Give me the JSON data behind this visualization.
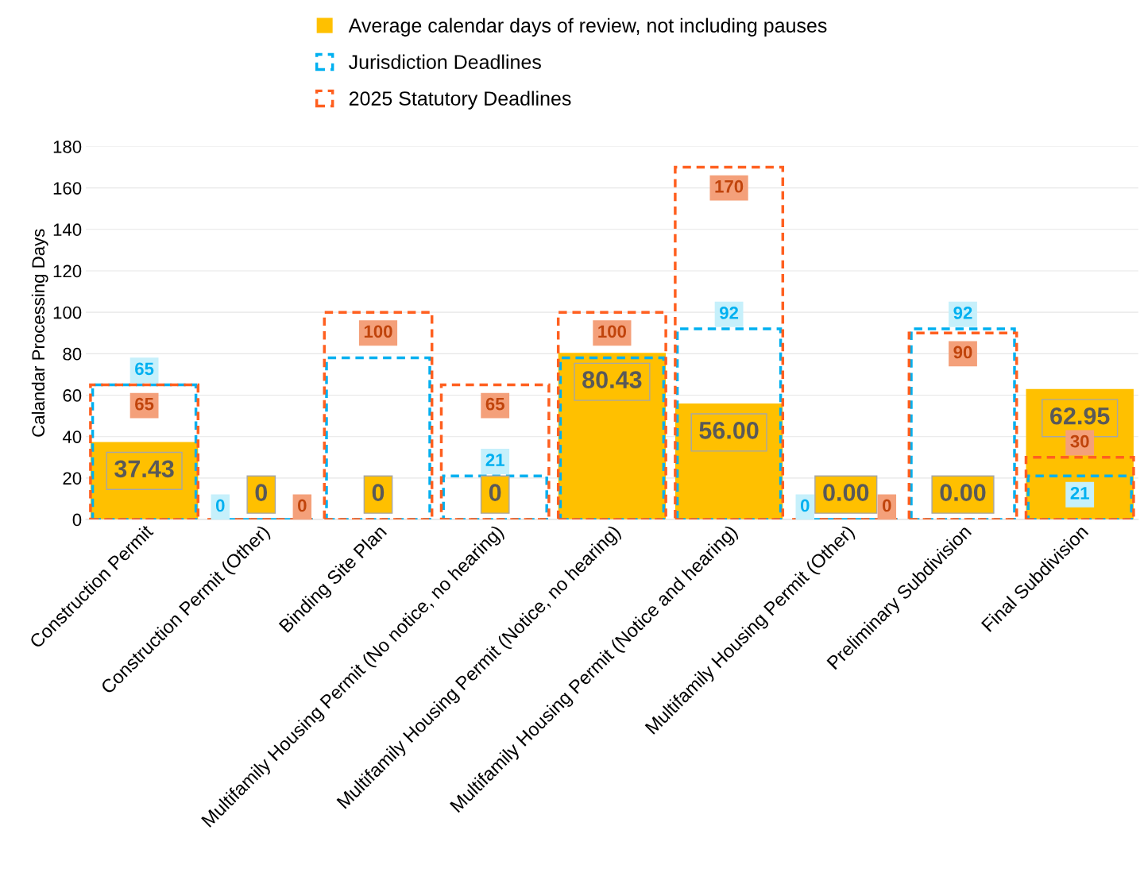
{
  "chart_data": {
    "type": "bar",
    "ylabel": "Calandar Processing Days",
    "categories": [
      "Construction Permit",
      "Construction Permit (Other)",
      "Binding Site Plan",
      "Multifamily Housing Permit (No notice, no hearing)",
      "Multifamily Housing Permit (Notice, no hearing)",
      "Multifamily Housing Permit (Notice and hearing)",
      "Multifamily Housing Permit (Other)",
      "Preliminary Subdivision",
      "Final Subdivision"
    ],
    "series": [
      {
        "name": "Average calendar days of review, not including pauses",
        "color": "#ffc000",
        "values": [
          37.43,
          0,
          0,
          0,
          80.43,
          56.0,
          0,
          0,
          62.95
        ],
        "value_labels": [
          "37.43",
          "0",
          "0",
          "0",
          "80.43",
          "56.00",
          "0.00",
          "0.00",
          "62.95"
        ]
      },
      {
        "name": "Jurisdiction Deadlines",
        "color": "#00b0f0",
        "line_style": "dashed",
        "values": [
          65,
          0,
          78,
          21,
          78,
          92,
          0,
          92,
          21
        ],
        "value_labels": [
          "65",
          "0",
          null,
          "21",
          null,
          "92",
          "0",
          "92",
          "21"
        ]
      },
      {
        "name": "2025 Statutory Deadlines",
        "color": "#ff5f1f",
        "line_style": "dashed",
        "values": [
          65,
          0,
          100,
          65,
          100,
          170,
          0,
          90,
          30
        ],
        "value_labels": [
          "65",
          "0",
          "100",
          "65",
          "100",
          "170",
          "0",
          "90",
          "30"
        ]
      }
    ],
    "ylim": [
      0,
      180
    ],
    "yticks": [
      0,
      20,
      40,
      60,
      80,
      100,
      120,
      140,
      160,
      180
    ],
    "grid": "y",
    "legend": "top"
  }
}
